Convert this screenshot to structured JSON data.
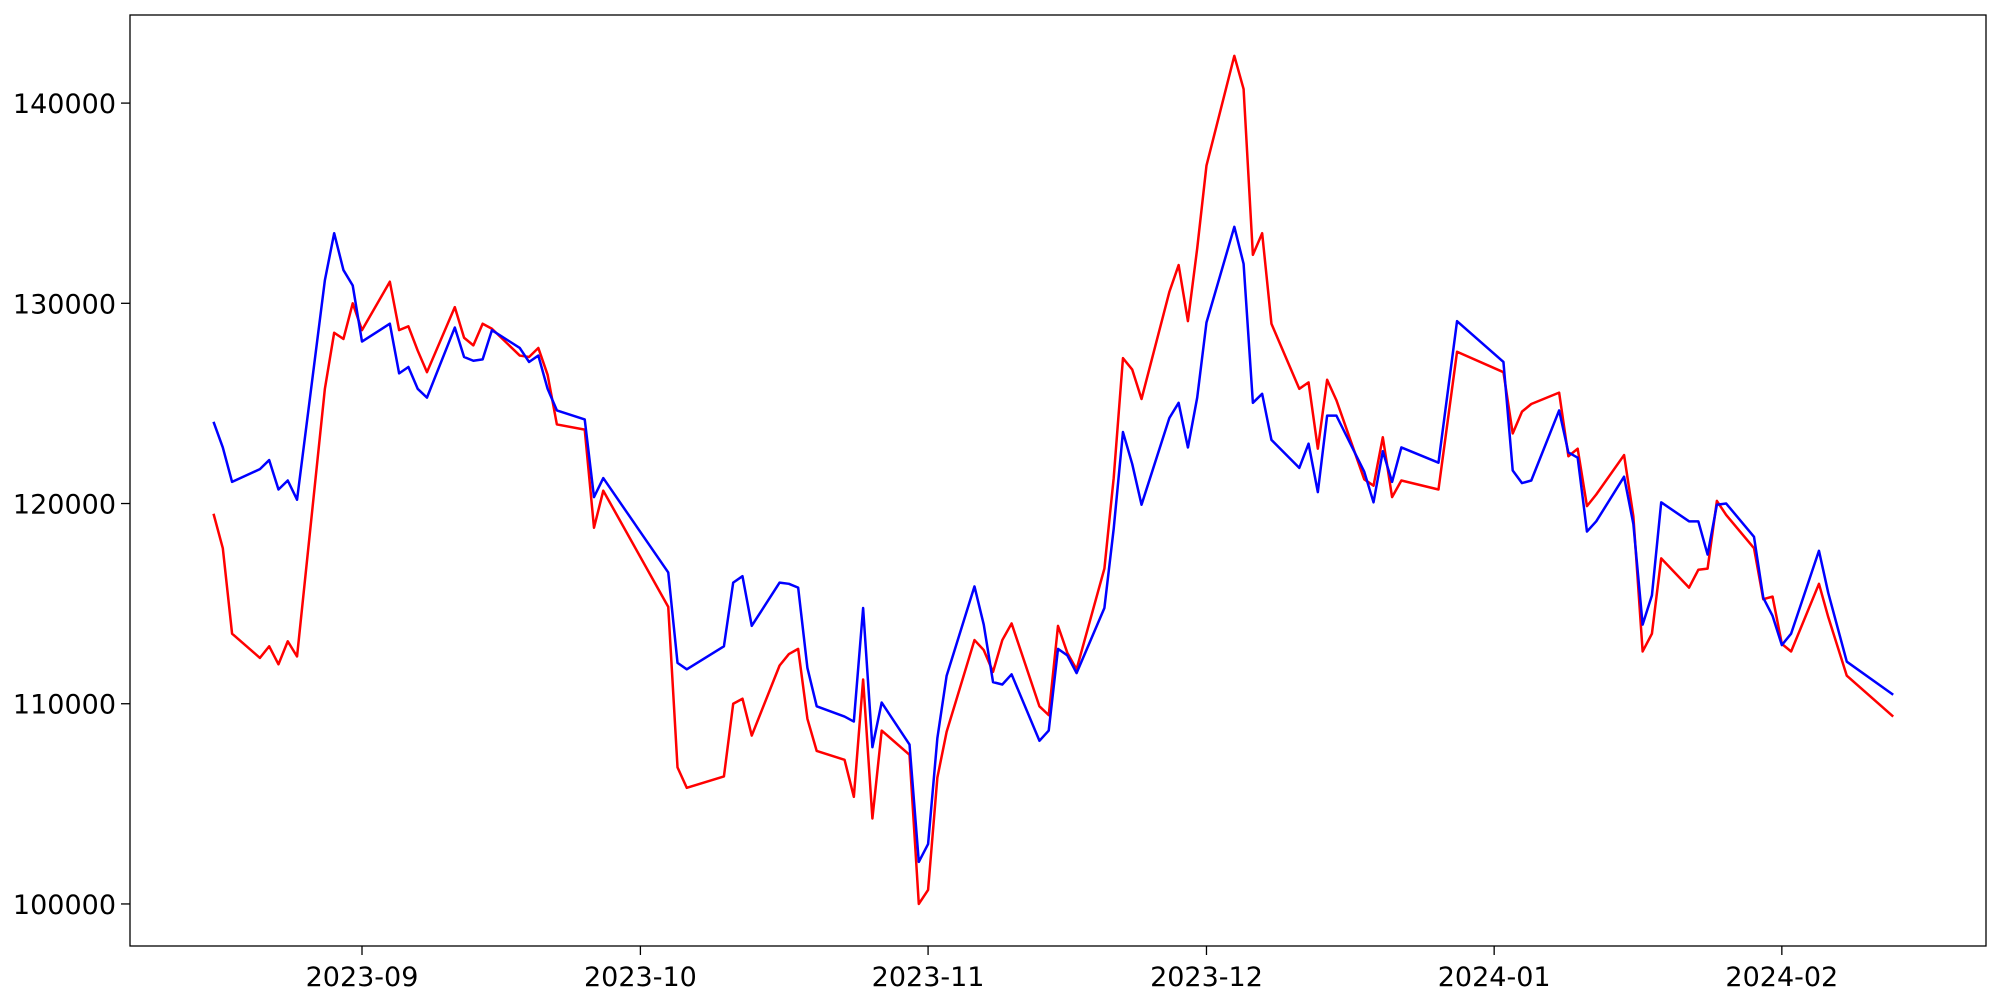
{
  "chart_data": {
    "type": "line",
    "x": [
      "2023-08-16",
      "2023-08-17",
      "2023-08-18",
      "2023-08-21",
      "2023-08-22",
      "2023-08-23",
      "2023-08-24",
      "2023-08-25",
      "2023-08-28",
      "2023-08-29",
      "2023-08-30",
      "2023-08-31",
      "2023-09-01",
      "2023-09-04",
      "2023-09-05",
      "2023-09-06",
      "2023-09-07",
      "2023-09-08",
      "2023-09-11",
      "2023-09-12",
      "2023-09-13",
      "2023-09-14",
      "2023-09-15",
      "2023-09-18",
      "2023-09-19",
      "2023-09-20",
      "2023-09-21",
      "2023-09-22",
      "2023-09-25",
      "2023-09-26",
      "2023-09-27",
      "2023-10-04",
      "2023-10-05",
      "2023-10-06",
      "2023-10-10",
      "2023-10-11",
      "2023-10-12",
      "2023-10-13",
      "2023-10-16",
      "2023-10-17",
      "2023-10-18",
      "2023-10-19",
      "2023-10-20",
      "2023-10-23",
      "2023-10-24",
      "2023-10-25",
      "2023-10-26",
      "2023-10-27",
      "2023-10-30",
      "2023-10-31",
      "2023-11-01",
      "2023-11-02",
      "2023-11-03",
      "2023-11-06",
      "2023-11-07",
      "2023-11-08",
      "2023-11-09",
      "2023-11-10",
      "2023-11-13",
      "2023-11-14",
      "2023-11-15",
      "2023-11-16",
      "2023-11-17",
      "2023-11-20",
      "2023-11-21",
      "2023-11-22",
      "2023-11-23",
      "2023-11-24",
      "2023-11-27",
      "2023-11-28",
      "2023-11-29",
      "2023-11-30",
      "2023-12-01",
      "2023-12-04",
      "2023-12-05",
      "2023-12-06",
      "2023-12-07",
      "2023-12-08",
      "2023-12-11",
      "2023-12-12",
      "2023-12-13",
      "2023-12-14",
      "2023-12-15",
      "2023-12-18",
      "2023-12-19",
      "2023-12-20",
      "2023-12-21",
      "2023-12-22",
      "2023-12-26",
      "2023-12-28",
      "2024-01-02",
      "2024-01-03",
      "2024-01-04",
      "2024-01-05",
      "2024-01-08",
      "2024-01-09",
      "2024-01-10",
      "2024-01-11",
      "2024-01-12",
      "2024-01-15",
      "2024-01-16",
      "2024-01-17",
      "2024-01-18",
      "2024-01-19",
      "2024-01-22",
      "2024-01-23",
      "2024-01-24",
      "2024-01-25",
      "2024-01-26",
      "2024-01-29",
      "2024-01-30",
      "2024-01-31",
      "2024-02-01",
      "2024-02-02",
      "2024-02-05",
      "2024-02-06",
      "2024-02-08",
      "2024-02-13"
    ],
    "series": [
      {
        "color": "#ff0000",
        "values": [
          119490,
          117770,
          113500,
          112290,
          112870,
          111970,
          113120,
          112360,
          125730,
          128530,
          128220,
          130000,
          128660,
          131080,
          128660,
          128850,
          127640,
          126560,
          129810,
          128280,
          127900,
          128980,
          128730,
          127390,
          127320,
          127770,
          126430,
          123950,
          123690,
          118790,
          120640,
          114840,
          106820,
          105800,
          106370,
          110000,
          110250,
          108410,
          111910,
          112480,
          112740,
          109240,
          107640,
          107200,
          105350,
          111210,
          104270,
          108660,
          107450,
          100000,
          100700,
          106310,
          108600,
          113180,
          112680,
          111590,
          113180,
          114010,
          109870,
          109430,
          113890,
          112550,
          111720,
          116750,
          121270,
          127260,
          126690,
          125220,
          130570,
          131910,
          129110,
          132740,
          136880,
          142360,
          140700,
          132420,
          133500,
          128980,
          125730,
          126050,
          122740,
          126180,
          125160,
          121210,
          120890,
          123310,
          120320,
          121150,
          120700,
          127580,
          126560,
          123500,
          124590,
          124970,
          125540,
          122360,
          122740,
          119870,
          120450,
          122420,
          119360,
          112610,
          113500,
          117260,
          115800,
          116690,
          116750,
          120130,
          119430,
          117770,
          115220,
          115350,
          112990,
          112610,
          115990,
          114330,
          111400,
          109360
        ]
      },
      {
        "color": "#0000ff",
        "values": [
          124080,
          122800,
          121080,
          121720,
          122170,
          120700,
          121150,
          120190,
          131150,
          133500,
          131660,
          130890,
          128090,
          128980,
          126500,
          126820,
          125730,
          125290,
          128790,
          127320,
          127130,
          127200,
          128660,
          127770,
          127070,
          127390,
          125730,
          124650,
          124200,
          120320,
          121270,
          116560,
          112040,
          111720,
          112870,
          116050,
          116370,
          113890,
          116050,
          115990,
          115800,
          111780,
          109870,
          109360,
          109110,
          114780,
          107830,
          110060,
          107960,
          102100,
          102990,
          108280,
          111400,
          115860,
          113950,
          111080,
          110960,
          111470,
          108150,
          108660,
          112740,
          112420,
          111530,
          114780,
          118730,
          123570,
          121970,
          119940,
          124270,
          125030,
          122800,
          125290,
          129040,
          133820,
          131970,
          125030,
          125480,
          123180,
          121780,
          122990,
          120570,
          124390,
          124390,
          121590,
          120060,
          122610,
          121080,
          122800,
          122040,
          129110,
          127070,
          121650,
          121020,
          121150,
          124650,
          122550,
          122290,
          118600,
          119110,
          121340,
          118980,
          113950,
          115410,
          120060,
          119110,
          119110,
          117450,
          119940,
          120000,
          118340,
          115290,
          114390,
          112930,
          113500,
          117640,
          115540,
          112100,
          110450
        ]
      }
    ],
    "xlim": [
      "2023-08-07",
      "2024-02-23"
    ],
    "xticks": [
      {
        "value": "2023-09-01",
        "label": "2023-09"
      },
      {
        "value": "2023-10-01",
        "label": "2023-10"
      },
      {
        "value": "2023-11-01",
        "label": "2023-11"
      },
      {
        "value": "2023-12-01",
        "label": "2023-12"
      },
      {
        "value": "2024-01-01",
        "label": "2024-01"
      },
      {
        "value": "2024-02-01",
        "label": "2024-02"
      }
    ],
    "ylim": [
      97900,
      144400
    ],
    "yticks": [
      100000,
      110000,
      120000,
      130000,
      140000
    ],
    "grid": false
  }
}
